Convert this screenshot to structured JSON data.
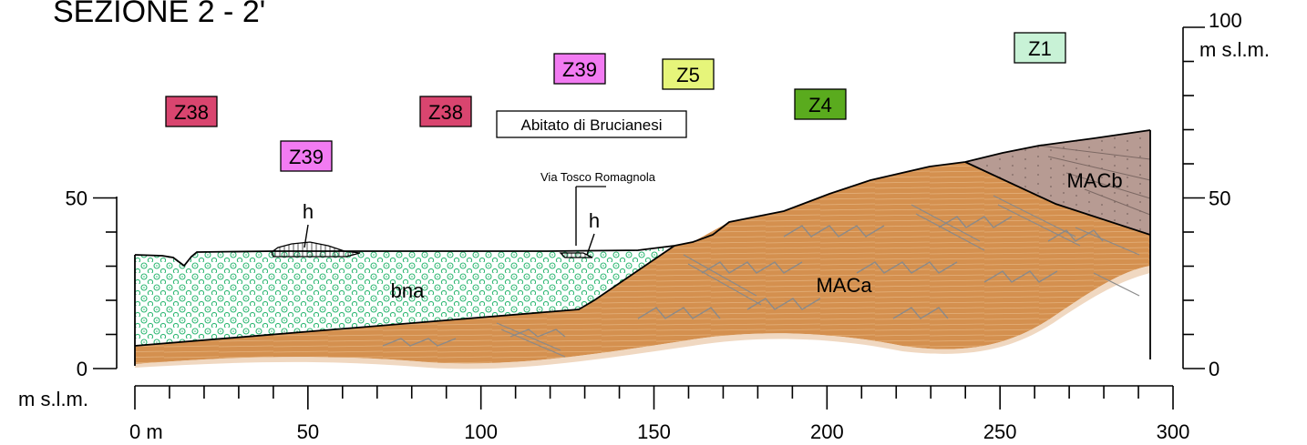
{
  "title": "SEZIONE 2 - 2'",
  "title_color": "#e60000",
  "left_axis": {
    "ticks": [
      {
        "value": 50,
        "label": "50"
      },
      {
        "value": 0,
        "label": "0"
      }
    ],
    "unit": "m s.l.m."
  },
  "right_axis": {
    "ticks": [
      {
        "value": 100,
        "label": "100"
      },
      {
        "value": 50,
        "label": "50"
      },
      {
        "value": 0,
        "label": "0"
      }
    ],
    "unit": "m s.l.m."
  },
  "bottom_axis": {
    "ticks": [
      {
        "value": 0,
        "label": "0 m"
      },
      {
        "value": 50,
        "label": "50"
      },
      {
        "value": 100,
        "label": "100"
      },
      {
        "value": 150,
        "label": "150"
      },
      {
        "value": 200,
        "label": "200"
      },
      {
        "value": 250,
        "label": "250"
      },
      {
        "value": 300,
        "label": "300"
      }
    ]
  },
  "zones": [
    {
      "label": "Z38",
      "color": "#d9456f"
    },
    {
      "label": "Z38",
      "color": "#d9456f"
    },
    {
      "label": "Z39",
      "color": "#f27bf2"
    },
    {
      "label": "Z39",
      "color": "#f27bf2"
    },
    {
      "label": "Z5",
      "color": "#e6f57a"
    },
    {
      "label": "Z4",
      "color": "#5aab1e"
    },
    {
      "label": "Z1",
      "color": "#c8f2d6"
    }
  ],
  "places": {
    "town": "Abitato di Brucianesi",
    "road": "Via Tosco Romagnola"
  },
  "units": [
    {
      "label": "bna",
      "color": "#4fcf8a"
    },
    {
      "label": "MACa",
      "color": "#d4904f"
    },
    {
      "label": "MACb",
      "color": "#b79b93"
    },
    {
      "label": "h",
      "color": "#555555"
    },
    {
      "label": "h",
      "color": "#555555"
    }
  ]
}
